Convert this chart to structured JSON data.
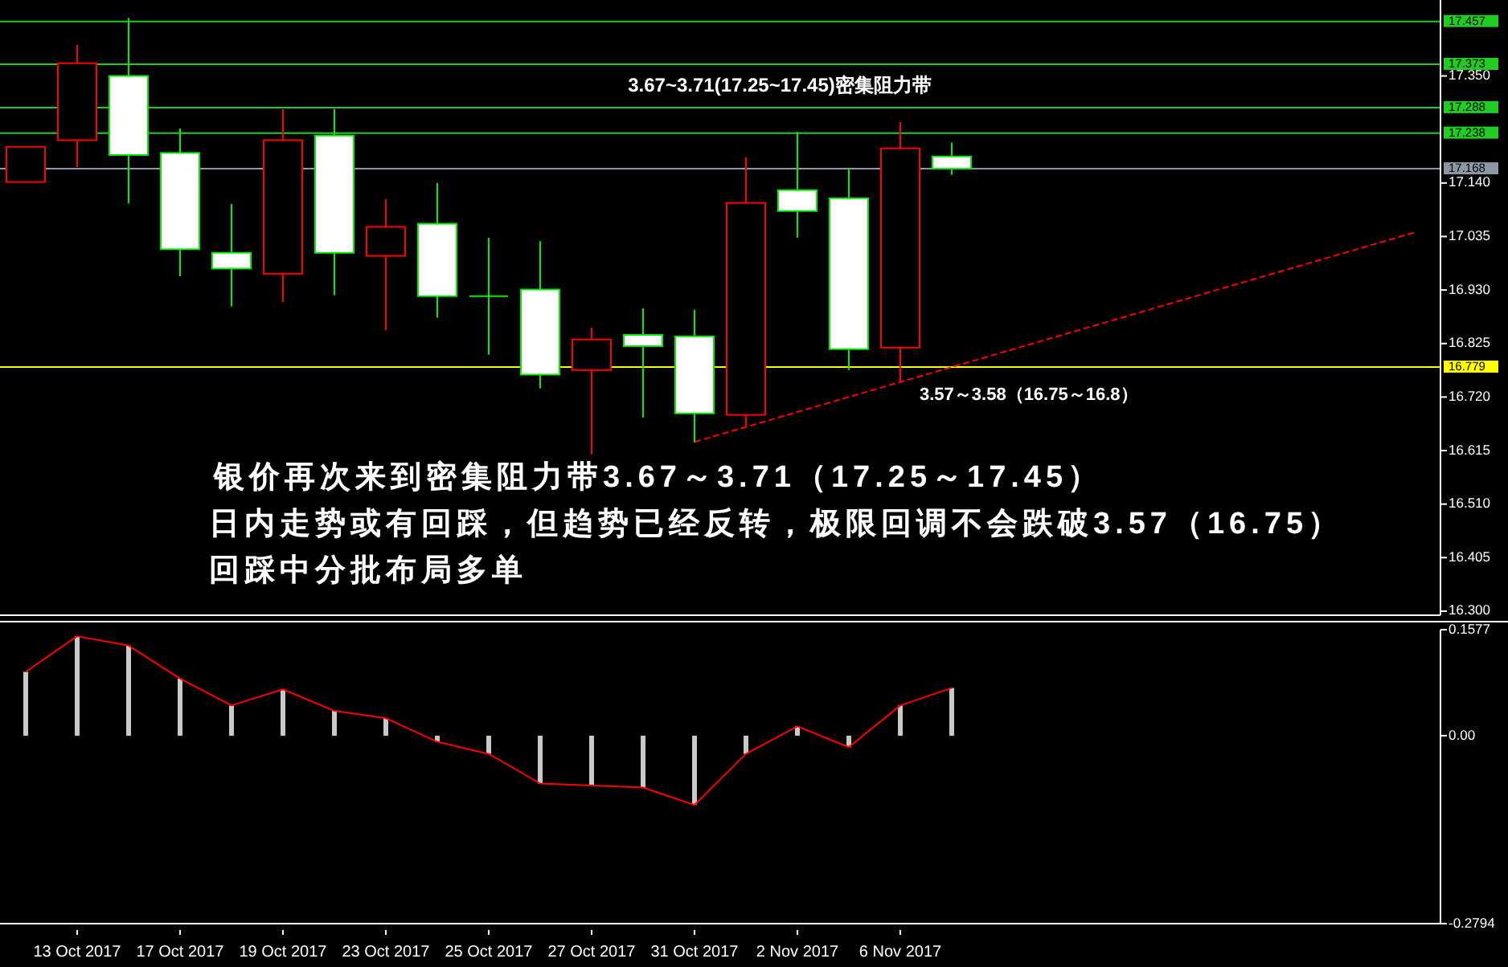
{
  "chart_data": [
    {
      "type": "candlestick",
      "categories": [
        null,
        null,
        null,
        null,
        null,
        null,
        null,
        null,
        null,
        null,
        null,
        null,
        null,
        null,
        null,
        null,
        null,
        null,
        null,
        null,
        null,
        null,
        null,
        null,
        null,
        null,
        null,
        null
      ],
      "ohlc": [
        [
          17.142,
          17.211,
          17.142,
          17.211
        ],
        [
          17.224,
          17.411,
          17.171,
          17.375
        ],
        [
          17.35,
          17.464,
          17.1,
          17.195
        ],
        [
          17.199,
          17.247,
          16.957,
          17.01
        ],
        [
          17.003,
          17.099,
          16.898,
          16.972
        ],
        [
          16.962,
          17.285,
          16.907,
          17.224
        ],
        [
          17.233,
          17.285,
          16.92,
          17.003
        ],
        [
          16.997,
          17.108,
          16.851,
          17.054
        ],
        [
          17.06,
          17.14,
          16.876,
          16.918
        ],
        [
          16.918,
          17.032,
          16.803,
          16.918
        ],
        [
          16.931,
          17.026,
          16.737,
          16.764
        ],
        [
          16.773,
          16.856,
          16.607,
          16.833
        ],
        [
          16.842,
          16.894,
          16.68,
          16.82
        ],
        [
          16.839,
          16.891,
          16.631,
          16.688
        ],
        [
          16.685,
          17.19,
          16.661,
          17.101
        ],
        [
          17.126,
          17.24,
          17.033,
          17.085
        ],
        [
          17.11,
          17.169,
          16.773,
          16.814
        ],
        [
          16.817,
          17.26,
          16.75,
          17.208
        ],
        [
          17.192,
          17.219,
          17.156,
          17.168
        ],
        null,
        null,
        null,
        null,
        null,
        null,
        null,
        null,
        null
      ],
      "series": [
        {
          "type": "line",
          "color": "#ff0000",
          "line_style": "dashed",
          "values": [
            null,
            null,
            null,
            null,
            null,
            null,
            null,
            null,
            null,
            null,
            null,
            null,
            null,
            16.632,
            null,
            null,
            null,
            null,
            null,
            null,
            null,
            null,
            null,
            null,
            null,
            null,
            null,
            17.043
          ]
        }
      ],
      "ylim": [
        16.292,
        17.499
      ],
      "yticks": [
        {
          "value": 17.35,
          "label": "17.350"
        },
        {
          "value": 17.14,
          "label": "17.140"
        },
        17.035,
        {
          "value": 16.93,
          "label": "16.930"
        },
        16.825,
        {
          "value": 16.72,
          "label": "16.720"
        },
        16.615,
        {
          "value": 16.51,
          "label": "16.510"
        },
        16.405,
        {
          "value": 16.3,
          "label": "16.300"
        }
      ],
      "ref_lines": [
        {
          "axis": "y",
          "value": 17.457,
          "label": "17.457",
          "color": "#22cc22"
        },
        {
          "axis": "y",
          "value": 17.373,
          "label": "17.373",
          "color": "#22cc22"
        },
        {
          "axis": "y",
          "value": 17.288,
          "label": "17.288",
          "color": "#22cc22"
        },
        {
          "axis": "y",
          "value": 17.238,
          "label": "17.238",
          "color": "#22cc22"
        },
        {
          "axis": "y",
          "value": 17.168,
          "label": "17.168",
          "color": "#8c96a4"
        },
        {
          "axis": "y",
          "value": 16.779,
          "label": "16.779",
          "color": "#ffff00"
        }
      ],
      "annotations": [
        "3.67~3.71(17.25~17.45)密集阻力带",
        "3.57～3.58（16.75～16.8）",
        "银价再次来到密集阻力带3.67～3.71（17.25～17.45）",
        "日内走势或有回踩，但趋势已经反转，极限回调不会跌破3.57（16.75）",
        "回踩中分批布局多单"
      ],
      "tick_labels": "y"
    },
    {
      "type": "bar",
      "categories": [
        null,
        "13 Oct 2017",
        null,
        "17 Oct 2017",
        null,
        "19 Oct 2017",
        null,
        "23 Oct 2017",
        null,
        "25 Oct 2017",
        null,
        "27 Oct 2017",
        null,
        "31 Oct 2017",
        null,
        "2 Nov 2017",
        null,
        "6 Nov 2017",
        null,
        null,
        null,
        null,
        null,
        null,
        null,
        null,
        null,
        null
      ],
      "series": [
        {
          "type": "bar",
          "color": "#c8c8c8",
          "values": [
            0.095,
            0.148,
            0.134,
            0.085,
            0.045,
            0.069,
            0.037,
            0.026,
            -0.009,
            -0.027,
            -0.071,
            -0.074,
            -0.077,
            -0.103,
            -0.027,
            0.014,
            -0.017,
            0.045,
            0.071,
            null,
            null,
            null,
            null,
            null,
            null,
            null,
            null,
            null
          ]
        },
        {
          "type": "line",
          "color": "#ff0000",
          "values": [
            0.095,
            0.148,
            0.134,
            0.085,
            0.045,
            0.069,
            0.037,
            0.026,
            -0.009,
            -0.027,
            -0.071,
            -0.074,
            -0.077,
            -0.103,
            -0.027,
            0.014,
            -0.017,
            0.045,
            0.071,
            null,
            null,
            null,
            null,
            null,
            null,
            null,
            null,
            null
          ]
        }
      ],
      "ylim": [
        -0.2794,
        0.1577
      ],
      "yticks": [
        0.1577,
        {
          "value": 0,
          "label": "0.00"
        },
        -0.2794
      ]
    }
  ]
}
